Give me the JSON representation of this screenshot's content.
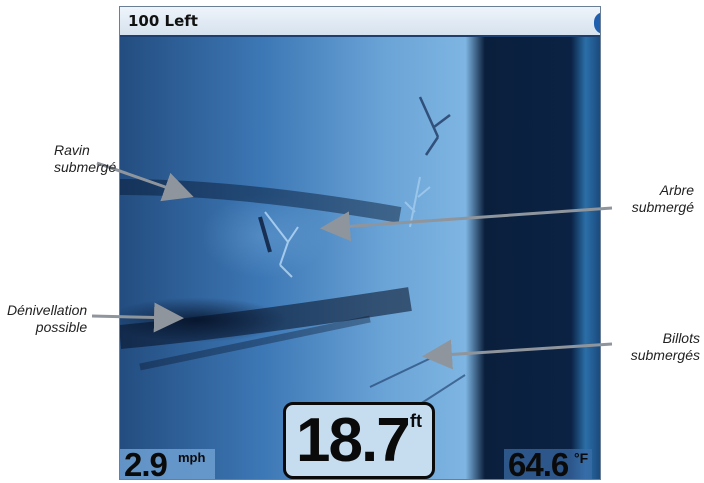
{
  "title_bar": {
    "title": "100 Left"
  },
  "readouts": {
    "speed": {
      "value": "2.9",
      "unit": "mph"
    },
    "depth": {
      "value": "18.7",
      "unit": "ft"
    },
    "temperature": {
      "value": "64.6",
      "unit": "°F"
    }
  },
  "callouts": {
    "ravin": {
      "line1": "Ravin",
      "line2": "submergé"
    },
    "denivellation": {
      "line1": "Dénivellation",
      "line2": "possible"
    },
    "arbre": {
      "line1": "Arbre",
      "line2": "submergé"
    },
    "billots": {
      "line1": "Billots",
      "line2": "submergés"
    }
  },
  "colors": {
    "screen_frame": "#0a1c3c",
    "title_bar": "#e4edf6",
    "sonar_light": "#7eb5e2",
    "sonar_dark": "#0a1f3c",
    "depth_box": "#c6dcef",
    "arrow": "#8f959c"
  }
}
